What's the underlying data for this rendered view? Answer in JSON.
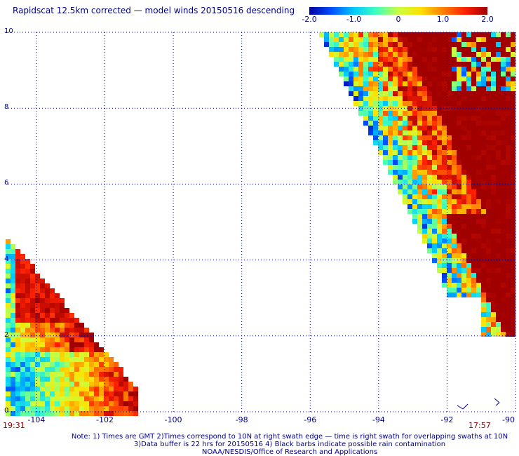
{
  "title": "Rapidscat 12.5km corrected — model winds 20150516 descending",
  "colorbar": {
    "min": -2.0,
    "max": 2.0,
    "ticks": [
      "-2.0",
      "-1.0",
      "0",
      "1.0",
      "2.0"
    ],
    "colors": [
      "#0000a0",
      "#0050ff",
      "#00c8ff",
      "#40ffc0",
      "#c8ff40",
      "#ffe000",
      "#ff8000",
      "#ff2000",
      "#a00000"
    ]
  },
  "axes": {
    "x_ticks": [
      "-104",
      "-102",
      "-100",
      "-98",
      "-96",
      "-94",
      "-92",
      "-90"
    ],
    "x_values": [
      -104,
      -102,
      -100,
      -98,
      -96,
      -94,
      -92,
      -90
    ],
    "y_ticks": [
      "0",
      "2",
      "4",
      "6",
      "8",
      "10"
    ],
    "y_values": [
      0,
      2,
      4,
      6,
      8,
      10
    ],
    "xlim": [
      -104.9,
      -90
    ],
    "ylim": [
      0,
      10
    ],
    "grid": "dotted"
  },
  "times": {
    "left": "19:31",
    "right": "17:57"
  },
  "notes": {
    "line1": "Note: 1) Times are GMT 2)Times correspond to 10N at right swath edge — time is right swath for overlapping swaths at 10N",
    "line2": "3)Data buffer is 22 hrs for 20150516 4) Black barbs indicate possible rain contamination",
    "line3": "NOAA/NESDIS/Office of Research and Applications"
  }
}
